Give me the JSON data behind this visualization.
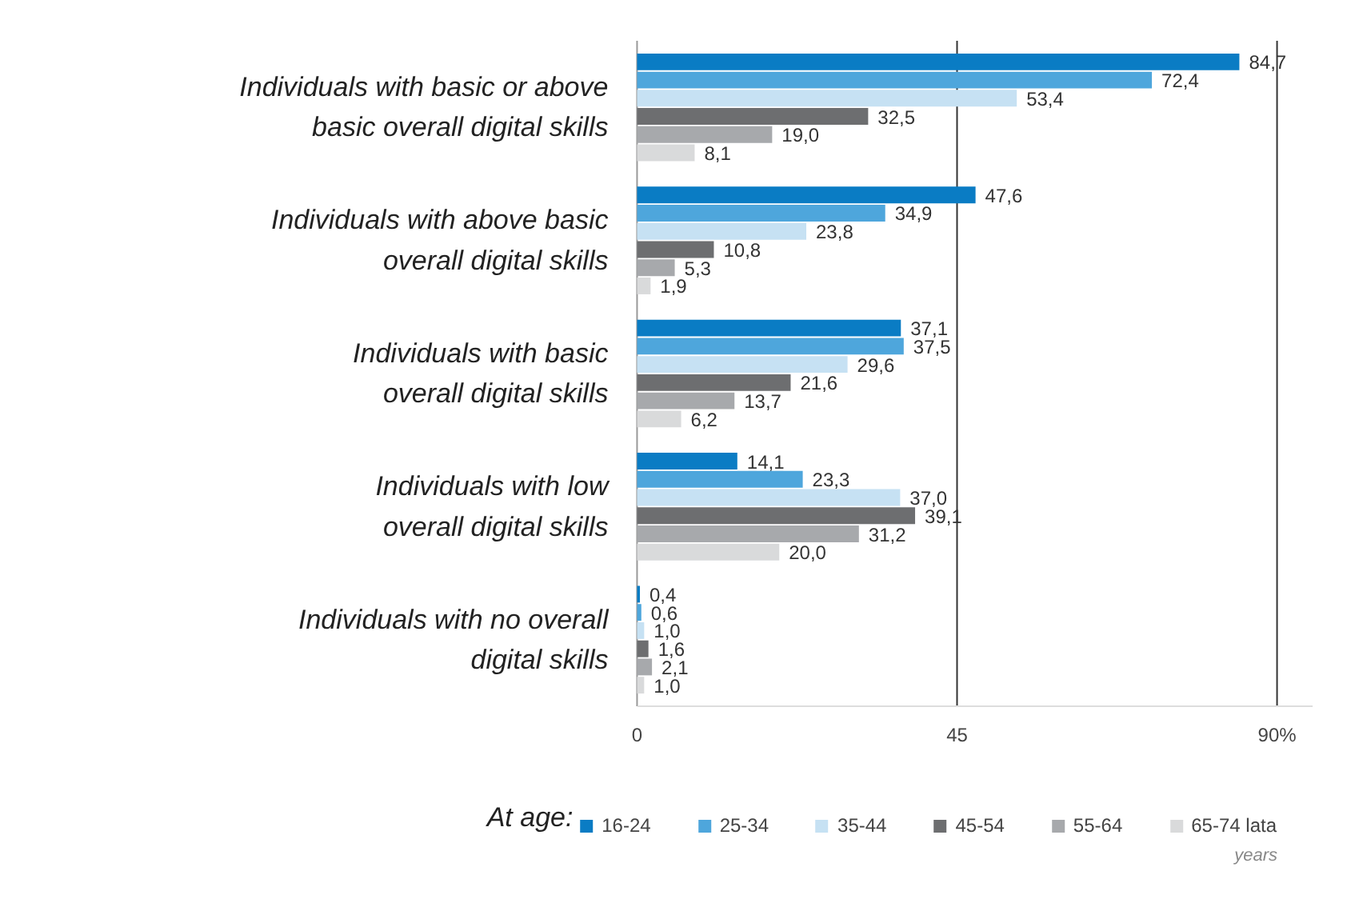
{
  "chart_data": {
    "type": "bar",
    "orientation": "horizontal",
    "categories": [
      "Individuals with basic or above\nbasic overall digital skills",
      "Individuals with above basic\noverall digital skills",
      "Individuals with basic\noverall digital skills",
      "Individuals with low\noverall digital skills",
      "Individuals with no overall\ndigital skills"
    ],
    "series": [
      {
        "name": "16-24",
        "color": "#0a7cc4",
        "values": [
          84.7,
          47.6,
          37.1,
          14.1,
          0.4
        ],
        "value_labels": [
          "84,7",
          "47,6",
          "37,1",
          "14,1",
          "0,4"
        ]
      },
      {
        "name": "25-34",
        "color": "#4ea6dc",
        "values": [
          72.4,
          34.9,
          37.5,
          23.3,
          0.6
        ],
        "value_labels": [
          "72,4",
          "34,9",
          "37,5",
          "23,3",
          "0,6"
        ]
      },
      {
        "name": "35-44",
        "color": "#c6e1f3",
        "values": [
          53.4,
          23.8,
          29.6,
          37.0,
          1.0
        ],
        "value_labels": [
          "53,4",
          "23,8",
          "29,6",
          "37,0",
          "1,0"
        ]
      },
      {
        "name": "45-54",
        "color": "#6d6e70",
        "values": [
          32.5,
          10.8,
          21.6,
          39.1,
          1.6
        ],
        "value_labels": [
          "32,5",
          "10,8",
          "21,6",
          "39,1",
          "1,6"
        ]
      },
      {
        "name": "55-64",
        "color": "#a7a9ac",
        "values": [
          19.0,
          5.3,
          13.7,
          31.2,
          2.1
        ],
        "value_labels": [
          "19,0",
          "5,3",
          "13,7",
          "31,2",
          "2,1"
        ]
      },
      {
        "name": "65-74 lata",
        "color": "#d9dadb",
        "values": [
          8.1,
          1.9,
          6.2,
          20.0,
          1.0
        ],
        "value_labels": [
          "8,1",
          "1,9",
          "6,2",
          "20,0",
          "1,0"
        ]
      }
    ],
    "xlim": [
      0,
      95
    ],
    "xticks": [
      0,
      45,
      {
        "value": 90,
        "label": "90%"
      }
    ],
    "grid": "x",
    "legend": "bottom",
    "legend_title": "At age:",
    "annotations": [
      "years"
    ]
  }
}
